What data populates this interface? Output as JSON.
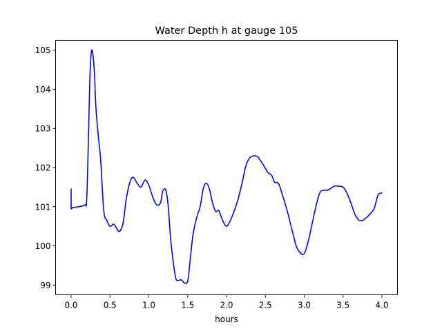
{
  "chart_data": {
    "type": "line",
    "title": "Water Depth h at gauge 105",
    "xlabel": "hours",
    "ylabel": "",
    "xlim": [
      -0.2,
      4.2
    ],
    "ylim": [
      98.75,
      105.25
    ],
    "xticks": [
      0.0,
      0.5,
      1.0,
      1.5,
      2.0,
      2.5,
      3.0,
      3.5,
      4.0
    ],
    "xtick_labels": [
      "0.0",
      "0.5",
      "1.0",
      "1.5",
      "2.0",
      "2.5",
      "3.0",
      "3.5",
      "4.0"
    ],
    "yticks": [
      99,
      100,
      101,
      102,
      103,
      104,
      105
    ],
    "ytick_labels": [
      "99",
      "100",
      "101",
      "102",
      "103",
      "104",
      "105"
    ],
    "grid": false,
    "line_color": "#0000ff",
    "series": [
      {
        "x": [
          0.0,
          0.0,
          0.02,
          0.1,
          0.18,
          0.2,
          0.22,
          0.24,
          0.26,
          0.28,
          0.3,
          0.32,
          0.35,
          0.38,
          0.42,
          0.46,
          0.5,
          0.55,
          0.6,
          0.63,
          0.67,
          0.71,
          0.76,
          0.8,
          0.85,
          0.9,
          0.95,
          1.0,
          1.05,
          1.1,
          1.15,
          1.18,
          1.22,
          1.25,
          1.28,
          1.32,
          1.35,
          1.38,
          1.42,
          1.46,
          1.5,
          1.53,
          1.57,
          1.62,
          1.66,
          1.7,
          1.74,
          1.78,
          1.82,
          1.86,
          1.9,
          1.95,
          2.0,
          2.05,
          2.1,
          2.15,
          2.2,
          2.25,
          2.3,
          2.35,
          2.4,
          2.43,
          2.48,
          2.53,
          2.58,
          2.62,
          2.65,
          2.68,
          2.72,
          2.78,
          2.85,
          2.9,
          2.95,
          3.0,
          3.05,
          3.1,
          3.15,
          3.2,
          3.25,
          3.3,
          3.35,
          3.4,
          3.45,
          3.5,
          3.55,
          3.6,
          3.65,
          3.7,
          3.75,
          3.8,
          3.85,
          3.9,
          3.95,
          4.0
        ],
        "y": [
          101.45,
          100.98,
          100.98,
          101.0,
          101.05,
          101.15,
          102.5,
          104.2,
          104.95,
          104.9,
          104.4,
          103.5,
          102.8,
          102.2,
          100.9,
          100.65,
          100.5,
          100.55,
          100.4,
          100.38,
          100.6,
          101.2,
          101.65,
          101.75,
          101.6,
          101.5,
          101.68,
          101.55,
          101.25,
          101.05,
          101.1,
          101.4,
          101.42,
          101.0,
          100.2,
          99.5,
          99.15,
          99.12,
          99.13,
          99.05,
          99.1,
          99.6,
          100.3,
          100.75,
          101.0,
          101.45,
          101.6,
          101.45,
          101.1,
          100.88,
          100.9,
          100.65,
          100.5,
          100.65,
          100.9,
          101.2,
          101.6,
          102.05,
          102.25,
          102.3,
          102.28,
          102.2,
          102.05,
          101.88,
          101.8,
          101.62,
          101.62,
          101.55,
          101.3,
          100.9,
          100.35,
          99.98,
          99.82,
          99.8,
          100.1,
          100.55,
          101.0,
          101.35,
          101.42,
          101.42,
          101.48,
          101.53,
          101.52,
          101.5,
          101.35,
          101.1,
          100.82,
          100.66,
          100.65,
          100.72,
          100.82,
          100.95,
          101.3,
          101.35
        ]
      }
    ]
  }
}
